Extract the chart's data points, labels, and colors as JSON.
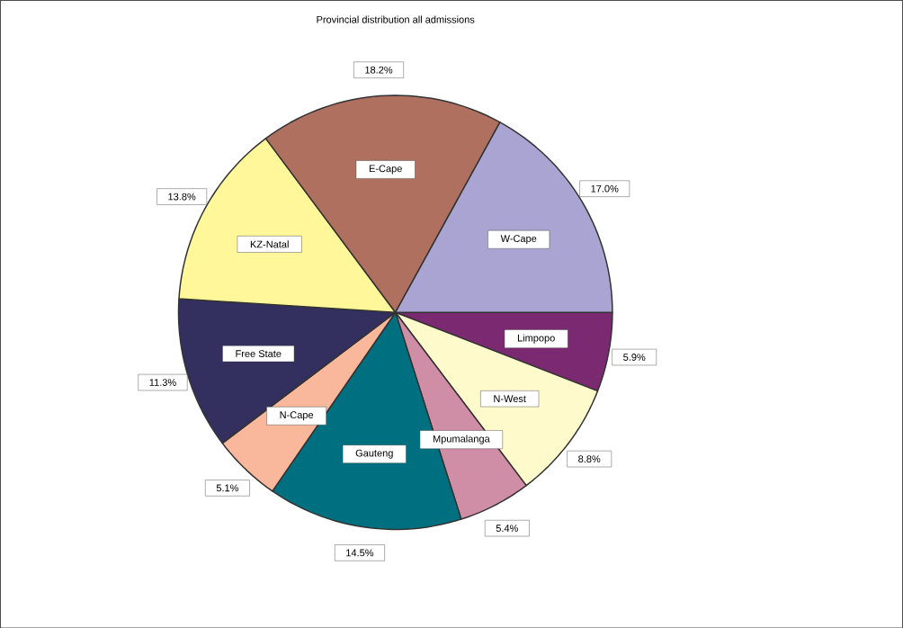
{
  "chart_data": {
    "type": "pie",
    "title": "Provincial distribution all admissions",
    "categories": [
      "Limpopo",
      "N-West",
      "Mpumalanga",
      "Gauteng",
      "N-Cape",
      "Free State",
      "KZ-Natal",
      "E-Cape",
      "W-Cape"
    ],
    "values": [
      5.9,
      8.8,
      5.4,
      14.5,
      5.1,
      11.3,
      13.8,
      18.2,
      17.0
    ],
    "colors": [
      "#7b2a72",
      "#fffacc",
      "#d08ea6",
      "#007080",
      "#f9b79c",
      "#33305f",
      "#fff799",
      "#b07060",
      "#aaa4d2"
    ],
    "value_labels": [
      "5.9%",
      "8.8%",
      "5.4%",
      "14.5%",
      "5.1%",
      "11.3%",
      "13.8%",
      "18.2%",
      "17.0%"
    ]
  }
}
